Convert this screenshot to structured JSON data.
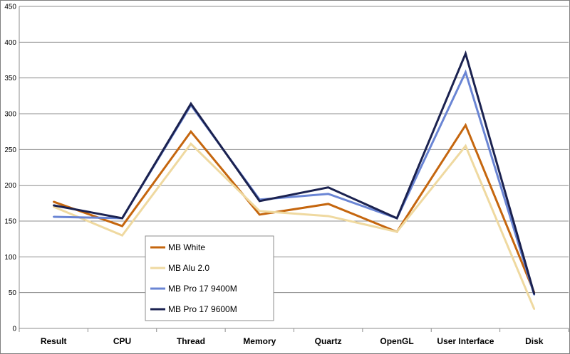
{
  "chart_data": {
    "type": "line",
    "title": "",
    "xlabel": "",
    "ylabel": "",
    "categories": [
      "Result",
      "CPU",
      "Thread",
      "Memory",
      "Quartz",
      "OpenGL",
      "User Interface",
      "Disk"
    ],
    "ylim": [
      0,
      450
    ],
    "yticks": [
      0,
      50,
      100,
      150,
      200,
      250,
      300,
      350,
      400,
      450
    ],
    "grid": true,
    "legend_position": "bottom-left inside plot",
    "series": [
      {
        "name": "MB White",
        "color": "#c5660e",
        "values": [
          177,
          143,
          275,
          159,
          174,
          135,
          284,
          50
        ]
      },
      {
        "name": "MB Alu 2.0",
        "color": "#efd9a0",
        "values": [
          170,
          130,
          258,
          164,
          157,
          135,
          255,
          27
        ]
      },
      {
        "name": "MB Pro 17 9400M",
        "color": "#6a85d4",
        "values": [
          156,
          154,
          312,
          180,
          188,
          154,
          358,
          47
        ]
      },
      {
        "name": "MB Pro 17 9600M",
        "color": "#1b2250",
        "values": [
          172,
          154,
          314,
          178,
          197,
          154,
          384,
          48
        ]
      }
    ]
  }
}
